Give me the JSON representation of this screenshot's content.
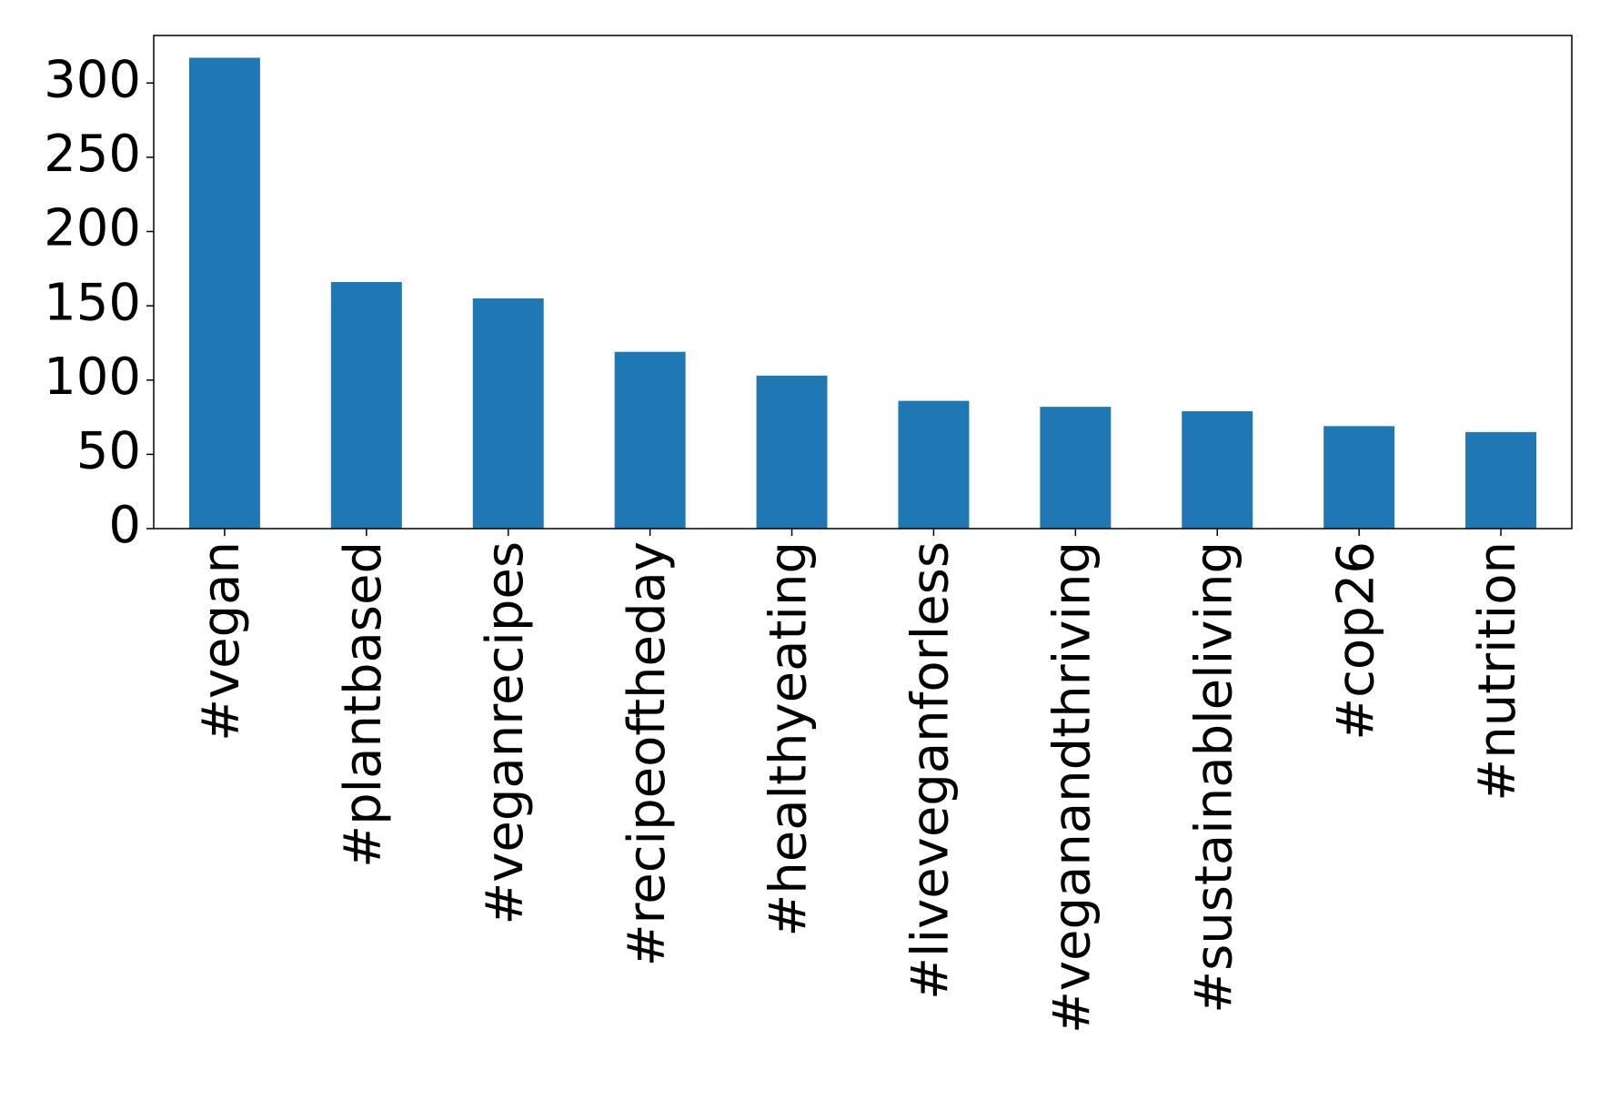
{
  "chart_data": {
    "type": "bar",
    "categories": [
      "#vegan",
      "#plantbased",
      "#veganrecipes",
      "#recipeoftheday",
      "#healthyeating",
      "#liveveganforless",
      "#veganandthriving",
      "#sustainableliving",
      "#cop26",
      "#nutrition"
    ],
    "values": [
      317,
      166,
      155,
      119,
      103,
      86,
      82,
      79,
      69,
      65
    ],
    "color": "#1f77b4",
    "ylim": [
      0,
      332
    ],
    "yticks": [
      0,
      50,
      100,
      150,
      200,
      250,
      300
    ],
    "grid": false
  }
}
